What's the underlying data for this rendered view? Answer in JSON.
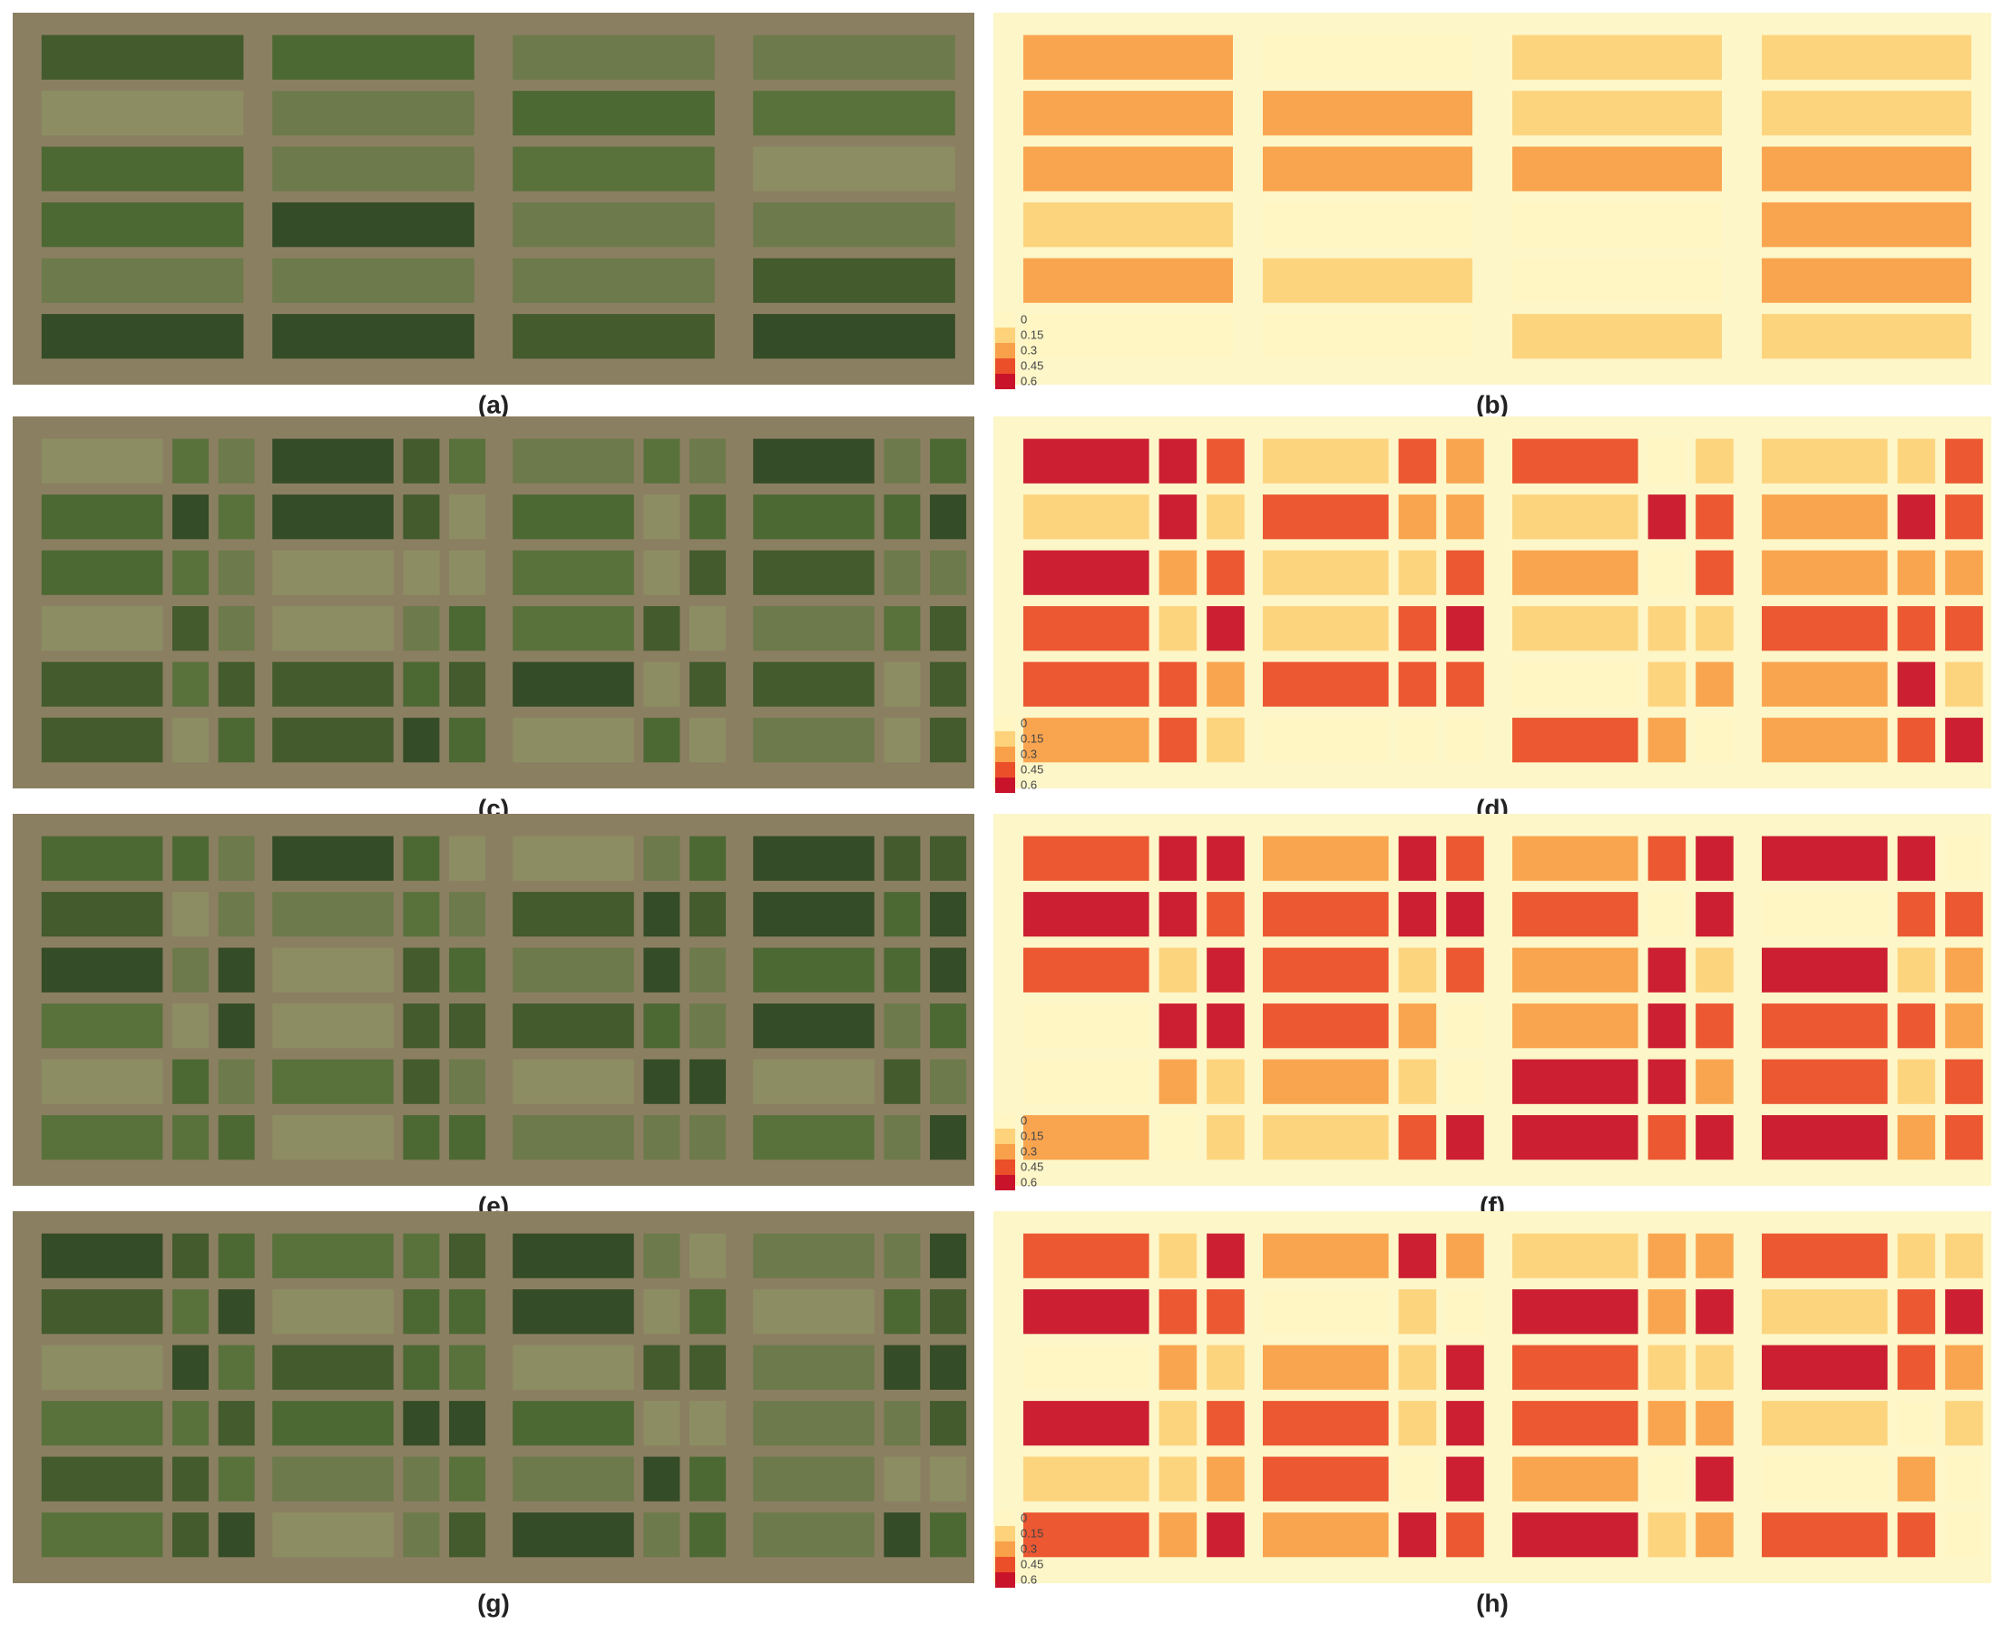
{
  "panels": [
    {
      "label": "(a)"
    },
    {
      "label": "(b)",
      "legend": [
        0,
        0.15,
        0.3,
        0.45,
        0.6
      ]
    },
    {
      "label": "(c)"
    },
    {
      "label": "(d)",
      "legend": [
        0,
        0.15,
        0.3,
        0.45,
        0.6
      ]
    },
    {
      "label": "(e)"
    },
    {
      "label": "(f)",
      "legend": [
        0,
        0.15,
        0.3,
        0.45,
        0.6
      ]
    },
    {
      "label": "(g)"
    },
    {
      "label": "(h)",
      "legend": [
        0,
        0.15,
        0.3,
        0.45,
        0.6
      ]
    }
  ]
}
